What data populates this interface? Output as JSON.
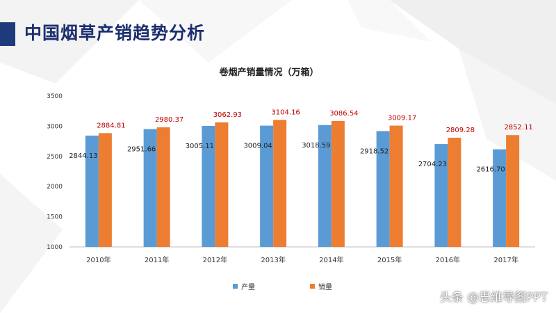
{
  "slide": {
    "title": "中国烟草产销趋势分析"
  },
  "watermark": "头条 @思维导图PPT",
  "colors": {
    "production": "#5b9bd5",
    "sales": "#ed7d31",
    "sales_label": "#c00000",
    "title": "#1d2f6f"
  },
  "chart_data": {
    "type": "bar",
    "title": "卷烟产销量情况（万箱）",
    "categories": [
      "2010年",
      "2011年",
      "2012年",
      "2013年",
      "2014年",
      "2015年",
      "2016年",
      "2017年"
    ],
    "series": [
      {
        "name": "产量",
        "values": [
          2844.13,
          2951.66,
          3005.11,
          3009.04,
          3018.59,
          2918.52,
          2704.23,
          2616.7
        ]
      },
      {
        "name": "销量",
        "values": [
          2884.81,
          2980.37,
          3062.93,
          3104.16,
          3086.54,
          3009.17,
          2809.28,
          2852.11
        ]
      }
    ],
    "value_labels": [
      [
        "2844.13",
        "2951.66",
        "3005.11",
        "3009.04",
        "3018.59",
        "2918.52",
        "2704.23",
        "2616.70"
      ],
      [
        "2884.81",
        "2980.37",
        "3062.93",
        "3104.16",
        "3086.54",
        "3009.17",
        "2809.28",
        "2852.11"
      ]
    ],
    "yticks": [
      "1000",
      "1500",
      "2000",
      "2500",
      "3000",
      "3500"
    ],
    "ylim": [
      1000,
      3500
    ],
    "grid": false,
    "legend": "bottom"
  }
}
